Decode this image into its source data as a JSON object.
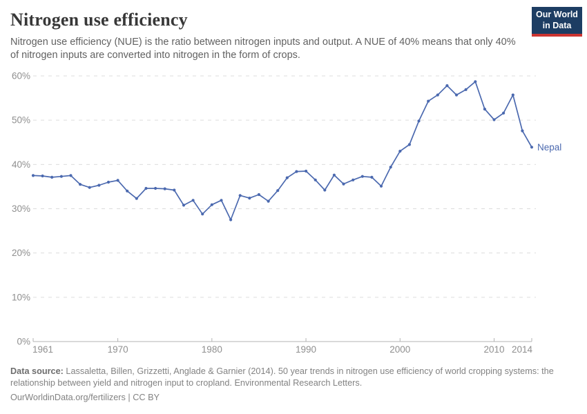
{
  "header": {
    "title": "Nitrogen use efficiency",
    "subtitle": "Nitrogen use efficiency (NUE) is the ratio between nitrogen inputs and output. A NUE of 40% means that only 40% of nitrogen inputs are converted into nitrogen in the form of crops.",
    "logo": {
      "line1": "Our World",
      "line2": "in Data"
    }
  },
  "chart_data": {
    "type": "line",
    "title": "Nitrogen use efficiency",
    "entity_label": "Nepal",
    "xlim": [
      1961,
      2014
    ],
    "ylim": [
      0,
      60
    ],
    "yticks": [
      0,
      10,
      20,
      30,
      40,
      50,
      60
    ],
    "ytick_suffix": "%",
    "xticks": [
      1961,
      1970,
      1980,
      1990,
      2000,
      2010,
      2014
    ],
    "grid": "dashed-horizontal",
    "line_color": "#4b69af",
    "axis_color": "#b3b3b3",
    "grid_color": "#dcdcdc",
    "label_color": "#8f8f8f",
    "series": [
      {
        "name": "Nepal",
        "years": [
          1961,
          1962,
          1963,
          1964,
          1965,
          1966,
          1967,
          1968,
          1969,
          1970,
          1971,
          1972,
          1973,
          1974,
          1975,
          1976,
          1977,
          1978,
          1979,
          1980,
          1981,
          1982,
          1983,
          1984,
          1985,
          1986,
          1987,
          1988,
          1989,
          1990,
          1991,
          1992,
          1993,
          1994,
          1995,
          1996,
          1997,
          1998,
          1999,
          2000,
          2001,
          2002,
          2003,
          2004,
          2005,
          2006,
          2007,
          2008,
          2009,
          2010,
          2011,
          2012,
          2013,
          2014
        ],
        "values": [
          37.5,
          37.4,
          37.1,
          37.3,
          37.5,
          35.5,
          34.8,
          35.3,
          36.0,
          36.4,
          34.0,
          32.3,
          34.6,
          34.6,
          34.5,
          34.2,
          30.8,
          31.9,
          28.8,
          30.9,
          31.9,
          27.5,
          33.0,
          32.4,
          33.2,
          31.7,
          34.1,
          37.0,
          38.4,
          38.5,
          36.5,
          34.2,
          37.6,
          35.6,
          36.5,
          37.3,
          37.1,
          35.1,
          39.4,
          43.0,
          44.5,
          49.8,
          54.3,
          55.7,
          57.8,
          55.7,
          56.9,
          58.7,
          52.5,
          50.1,
          51.6,
          55.7,
          47.6,
          43.9
        ]
      }
    ]
  },
  "footer": {
    "source_label": "Data source:",
    "source_text": "Lassaletta, Billen, Grizzetti, Anglade & Garnier (2014). 50 year trends in nitrogen use efficiency of world cropping systems: the relationship between yield and nitrogen input to cropland. Environmental Research Letters.",
    "url": "OurWorldinData.org/fertilizers",
    "separator": "|",
    "license": "CC BY"
  }
}
